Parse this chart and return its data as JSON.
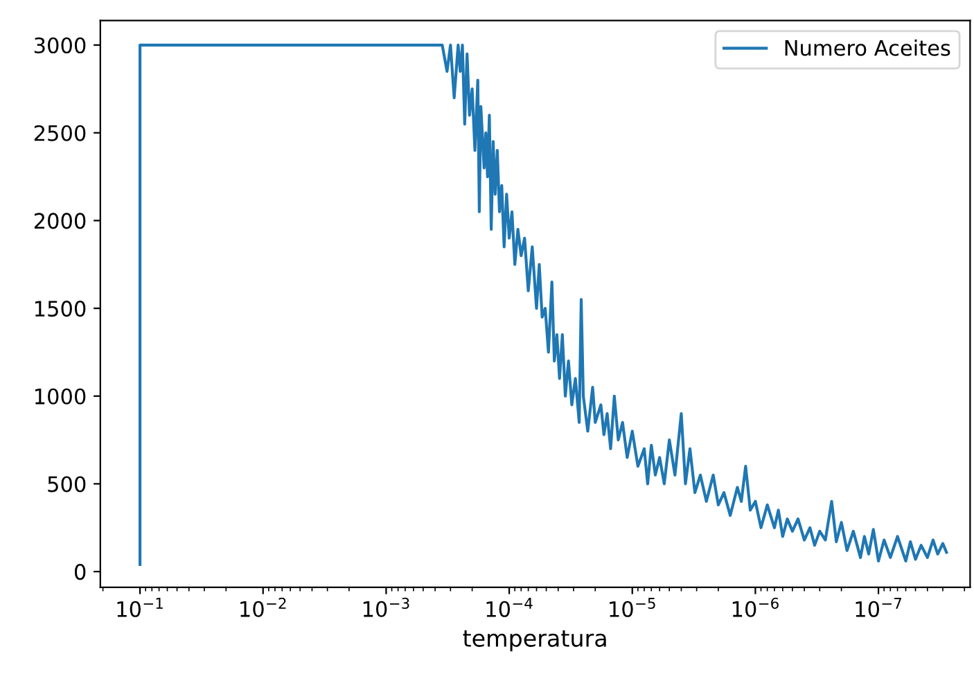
{
  "chart_data": {
    "type": "line",
    "xlabel": "temperatura",
    "log": "x",
    "legend": "top right",
    "grid": false,
    "xlim": [
      0.21,
      1.8e-08
    ],
    "ylim": [
      -90,
      3140
    ],
    "xticks": [
      {
        "value": 0.1,
        "label": "10$^{−1}$"
      },
      {
        "value": 0.01,
        "label": "10$^{−2}$"
      },
      {
        "value": 0.001,
        "label": "10$^{−3}$"
      },
      {
        "value": 0.0001,
        "label": "10$^{−4}$"
      },
      {
        "value": 1e-05,
        "label": "10$^{−5}$"
      },
      {
        "value": 1e-06,
        "label": "10$^{−6}$"
      },
      {
        "value": 1e-07,
        "label": "10$^{−7}$"
      }
    ],
    "yticks": [
      0,
      500,
      1000,
      1500,
      2000,
      2500,
      3000
    ],
    "series": [
      {
        "name": "Numero Aceites",
        "color": "#1f77b4",
        "x": [
          0.1,
          0.1,
          0.00035,
          0.00032,
          0.0003,
          0.00028,
          0.00026,
          0.00025,
          0.00024,
          0.00023,
          0.00022,
          0.00021,
          0.0002,
          0.00019,
          0.00018,
          0.000175,
          0.00017,
          0.00016,
          0.000155,
          0.00015,
          0.000145,
          0.00014,
          0.000135,
          0.00013,
          0.000125,
          0.00012,
          0.000115,
          0.00011,
          0.000105,
          0.0001,
          9.5e-05,
          9e-05,
          8.5e-05,
          8e-05,
          7.5e-05,
          7e-05,
          6.5e-05,
          6e-05,
          5.7e-05,
          5.4e-05,
          5.1e-05,
          4.8e-05,
          4.5e-05,
          4.3e-05,
          4.1e-05,
          3.9e-05,
          3.7e-05,
          3.5e-05,
          3.3e-05,
          3.1e-05,
          2.9e-05,
          2.7e-05,
          2.6e-05,
          2.5e-05,
          2.3e-05,
          2.1e-05,
          2e-05,
          1.8e-05,
          1.7e-05,
          1.6e-05,
          1.5e-05,
          1.4e-05,
          1.3e-05,
          1.2e-05,
          1.1e-05,
          1e-05,
          9e-06,
          8e-06,
          7.5e-06,
          7e-06,
          6.5e-06,
          6e-06,
          5.5e-06,
          5e-06,
          4.5e-06,
          4e-06,
          3.7e-06,
          3.4e-06,
          3.1e-06,
          2.8e-06,
          2.5e-06,
          2.2e-06,
          2e-06,
          1.8e-06,
          1.6e-06,
          1.4e-06,
          1.3e-06,
          1.2e-06,
          1.1e-06,
          1e-06,
          9e-07,
          8e-07,
          7e-07,
          6.5e-07,
          6e-07,
          5.5e-07,
          5e-07,
          4.5e-07,
          4e-07,
          3.6e-07,
          3.3e-07,
          3e-07,
          2.7e-07,
          2.4e-07,
          2.2e-07,
          2e-07,
          1.8e-07,
          1.6e-07,
          1.4e-07,
          1.3e-07,
          1.2e-07,
          1.1e-07,
          1e-07,
          9e-08,
          8e-08,
          7e-08,
          6e-08,
          5.5e-08,
          5e-08,
          4.5e-08,
          4e-08,
          3.6e-08,
          3.3e-08,
          3e-08,
          2.8e-08
        ],
        "values": [
          40,
          3000,
          3000,
          2850,
          3000,
          2700,
          3000,
          2850,
          3000,
          2550,
          2950,
          2600,
          2750,
          2400,
          2800,
          2050,
          2650,
          2300,
          2500,
          2250,
          2600,
          1950,
          2450,
          2150,
          2400,
          2050,
          2200,
          1850,
          2150,
          1900,
          2050,
          1750,
          1950,
          1800,
          1900,
          1600,
          1850,
          1500,
          1750,
          1450,
          1500,
          1250,
          1650,
          1200,
          1350,
          1100,
          1350,
          1000,
          1200,
          950,
          1100,
          850,
          1550,
          1000,
          800,
          1050,
          850,
          950,
          780,
          900,
          700,
          1000,
          750,
          850,
          650,
          800,
          600,
          700,
          500,
          720,
          550,
          650,
          500,
          750,
          550,
          900,
          500,
          700,
          450,
          550,
          400,
          550,
          380,
          450,
          320,
          480,
          400,
          600,
          350,
          400,
          250,
          380,
          250,
          350,
          200,
          300,
          230,
          300,
          180,
          250,
          150,
          230,
          180,
          400,
          170,
          280,
          120,
          230,
          80,
          200,
          100,
          240,
          60,
          180,
          80,
          200,
          60,
          170,
          70,
          150,
          80,
          180,
          100,
          160,
          110
        ]
      }
    ]
  }
}
